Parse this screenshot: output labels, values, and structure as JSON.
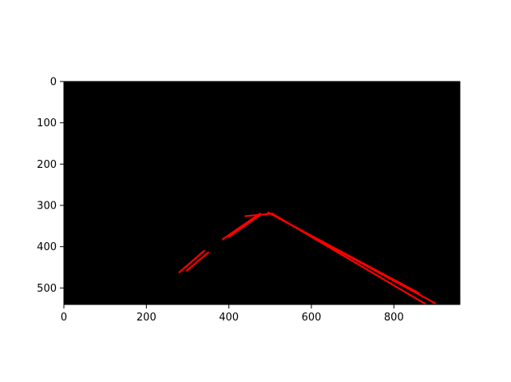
{
  "chart_data": {
    "type": "image",
    "title": "",
    "xlabel": "",
    "ylabel": "",
    "xlim": [
      0,
      960
    ],
    "ylim": [
      540,
      0
    ],
    "y_axis_inverted": true,
    "grid": false,
    "background_color": "#000000",
    "line_color": "#ff0000",
    "x_ticks": [
      {
        "value": 0,
        "label": "0"
      },
      {
        "value": 200,
        "label": "200"
      },
      {
        "value": 400,
        "label": "400"
      },
      {
        "value": 600,
        "label": "600"
      },
      {
        "value": 800,
        "label": "800"
      }
    ],
    "y_ticks": [
      {
        "value": 0,
        "label": "0"
      },
      {
        "value": 100,
        "label": "100"
      },
      {
        "value": 200,
        "label": "200"
      },
      {
        "value": 300,
        "label": "300"
      },
      {
        "value": 400,
        "label": "400"
      },
      {
        "value": 500,
        "label": "500"
      }
    ],
    "segments": [
      {
        "x1": 280,
        "y1": 462,
        "x2": 340,
        "y2": 410
      },
      {
        "x1": 298,
        "y1": 458,
        "x2": 350,
        "y2": 414
      },
      {
        "x1": 385,
        "y1": 382,
        "x2": 475,
        "y2": 320
      },
      {
        "x1": 400,
        "y1": 376,
        "x2": 478,
        "y2": 322
      },
      {
        "x1": 440,
        "y1": 326,
        "x2": 505,
        "y2": 320
      },
      {
        "x1": 495,
        "y1": 317,
        "x2": 900,
        "y2": 537
      },
      {
        "x1": 505,
        "y1": 320,
        "x2": 875,
        "y2": 538
      },
      {
        "x1": 560,
        "y1": 352,
        "x2": 860,
        "y2": 512
      }
    ]
  }
}
